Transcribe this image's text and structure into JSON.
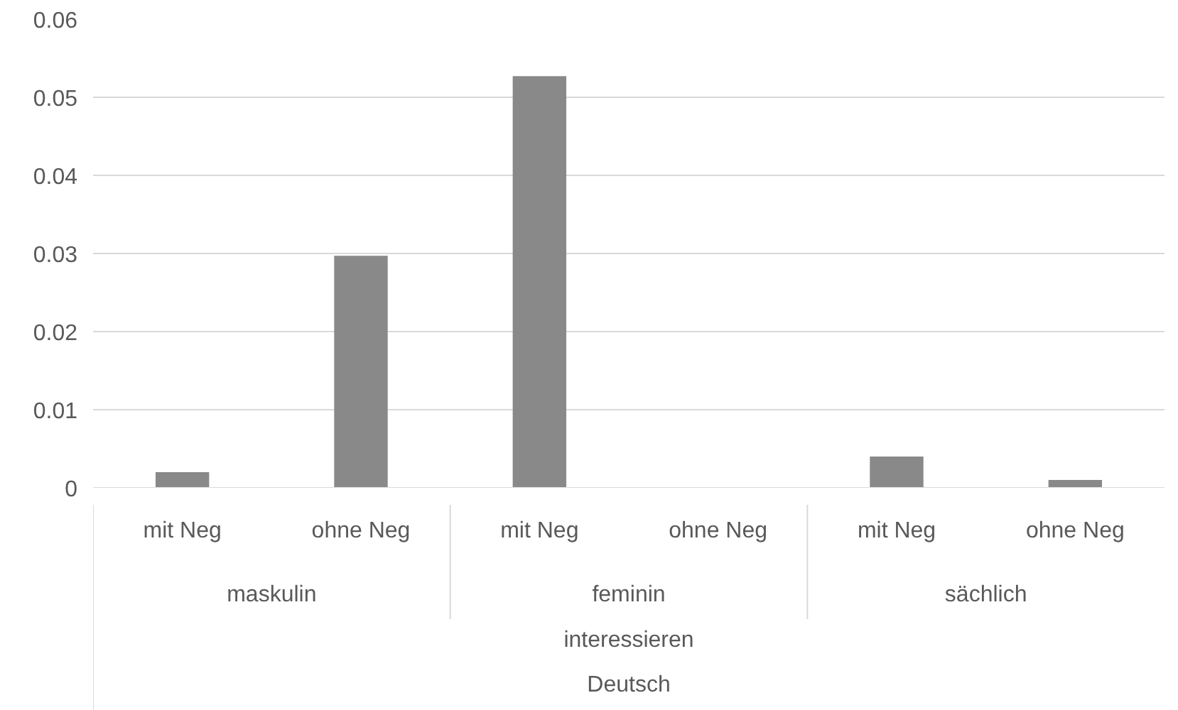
{
  "chart_data": {
    "type": "bar",
    "categories": [
      "mit Neg",
      "ohne Neg",
      "mit Neg",
      "ohne Neg",
      "mit Neg",
      "ohne Neg"
    ],
    "values": [
      0.002,
      0.0297,
      0.0527,
      0,
      0.004,
      0.001
    ],
    "color": "#898989",
    "ylim": [
      0,
      0.06
    ],
    "yticks": [
      {
        "value": 0,
        "label": "0"
      },
      0.01,
      0.02,
      0.03,
      0.04,
      0.05,
      0.06
    ],
    "grid": "y",
    "annotations": [
      "maskulin",
      "feminin",
      "sächlich",
      "interessieren",
      "Deutsch"
    ]
  }
}
